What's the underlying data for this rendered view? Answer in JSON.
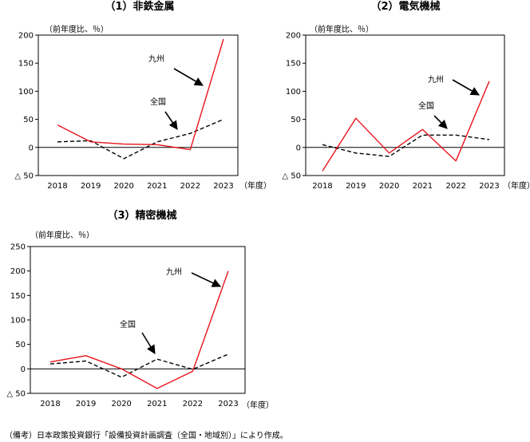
{
  "source_note": "（備考）日本政策投資銀行「設備投資計画調査（全国・地域別）」により作成。",
  "colors": {
    "kyushu": "#e8141c",
    "zenkoku": "#000000",
    "axis": "#000000"
  },
  "chart_data": [
    {
      "type": "line",
      "title": "（1）非鉄金属",
      "unit_label": "（前年度比、％）",
      "year_unit": "（年度）",
      "categories": [
        "2018",
        "2019",
        "2020",
        "2021",
        "2022",
        "2023"
      ],
      "ylim": [
        -50,
        200
      ],
      "yticks": [
        -50,
        0,
        50,
        100,
        150,
        200
      ],
      "ytick_labels": [
        "△ 50",
        "0",
        "50",
        "100",
        "150",
        "200"
      ],
      "series": [
        {
          "name": "九州",
          "style": "solid",
          "color": "#e8141c",
          "values": [
            40,
            10,
            6,
            5,
            -4,
            193
          ]
        },
        {
          "name": "全国",
          "style": "dashed",
          "color": "#000000",
          "values": [
            10,
            12,
            -20,
            10,
            25,
            50
          ]
        }
      ]
    },
    {
      "type": "line",
      "title": "（2）電気機械",
      "unit_label": "（前年度比、％）",
      "year_unit": "（年度）",
      "categories": [
        "2018",
        "2019",
        "2020",
        "2021",
        "2022",
        "2023"
      ],
      "ylim": [
        -50,
        200
      ],
      "yticks": [
        -50,
        0,
        50,
        100,
        150,
        200
      ],
      "ytick_labels": [
        "△ 50",
        "0",
        "50",
        "100",
        "150",
        "200"
      ],
      "series": [
        {
          "name": "九州",
          "style": "solid",
          "color": "#e8141c",
          "values": [
            -42,
            52,
            -10,
            32,
            -24,
            118
          ]
        },
        {
          "name": "全国",
          "style": "dashed",
          "color": "#000000",
          "values": [
            5,
            -10,
            -16,
            22,
            22,
            14
          ]
        }
      ]
    },
    {
      "type": "line",
      "title": "（3）精密機械",
      "unit_label": "（前年度比、％）",
      "year_unit": "（年度）",
      "categories": [
        "2018",
        "2019",
        "2020",
        "2021",
        "2022",
        "2023"
      ],
      "ylim": [
        -50,
        250
      ],
      "yticks": [
        -50,
        0,
        50,
        100,
        150,
        200,
        250
      ],
      "ytick_labels": [
        "△ 50",
        "0",
        "50",
        "100",
        "150",
        "200",
        "250"
      ],
      "series": [
        {
          "name": "九州",
          "style": "solid",
          "color": "#e8141c",
          "values": [
            14,
            27,
            0,
            -40,
            -5,
            200
          ]
        },
        {
          "name": "全国",
          "style": "dashed",
          "color": "#000000",
          "values": [
            10,
            16,
            -17,
            20,
            -1,
            30
          ]
        }
      ]
    }
  ]
}
